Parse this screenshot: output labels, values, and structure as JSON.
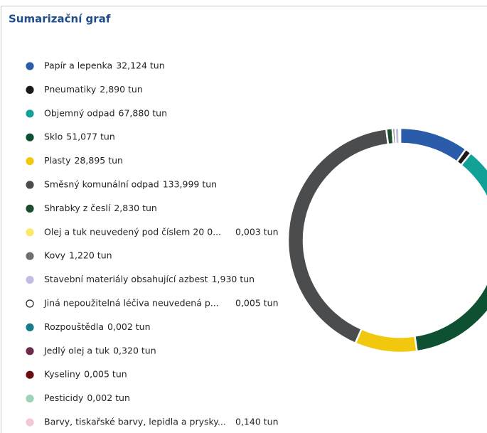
{
  "chart_data": {
    "type": "donut",
    "title": "Sumarizační graf",
    "categories": [
      "Papír a lepenka",
      "Pneumatiky",
      "Objemný odpad",
      "Sklo",
      "Plasty",
      "Směsný komunální odpad",
      "Shrabky z česlí",
      "Olej a tuk neuvedený pod číslem 20 0...",
      "Kovy",
      "Stavební materiály obsahující azbest",
      "Jiná nepoužitelná léčiva neuvedená p...",
      "Rozpouštědla",
      "Jedlý olej a tuk",
      "Kyseliny",
      "Pesticidy",
      "Barvy, tiskařské barvy, lepidla a prysky..."
    ],
    "values": [
      32.124,
      2.89,
      67.88,
      51.077,
      28.895,
      133.999,
      2.83,
      0.003,
      1.22,
      1.93,
      0.005,
      0.002,
      0.32,
      0.005,
      0.002,
      0.14
    ],
    "value_labels": [
      "32,124 tun",
      "2,890 tun",
      "67,880 tun",
      "51,077 tun",
      "28,895 tun",
      "133,999 tun",
      "2,830 tun",
      "0,003 tun",
      "1,220 tun",
      "1,930 tun",
      "0,005 tun",
      "0,002 tun",
      "0,320 tun",
      "0,005 tun",
      "0,002 tun",
      "0,140 tun"
    ],
    "colors": [
      "#2a5caa",
      "#1a1a1a",
      "#12a197",
      "#0e5132",
      "#f2c80f",
      "#4a4c4e",
      "#1b4d2e",
      "#fce96a",
      "#6e6e6e",
      "#c4bde3",
      "#ffffff",
      "#167c8a",
      "#6b2c4d",
      "#6b0b12",
      "#9fd4bb",
      "#f1c7d9"
    ]
  }
}
